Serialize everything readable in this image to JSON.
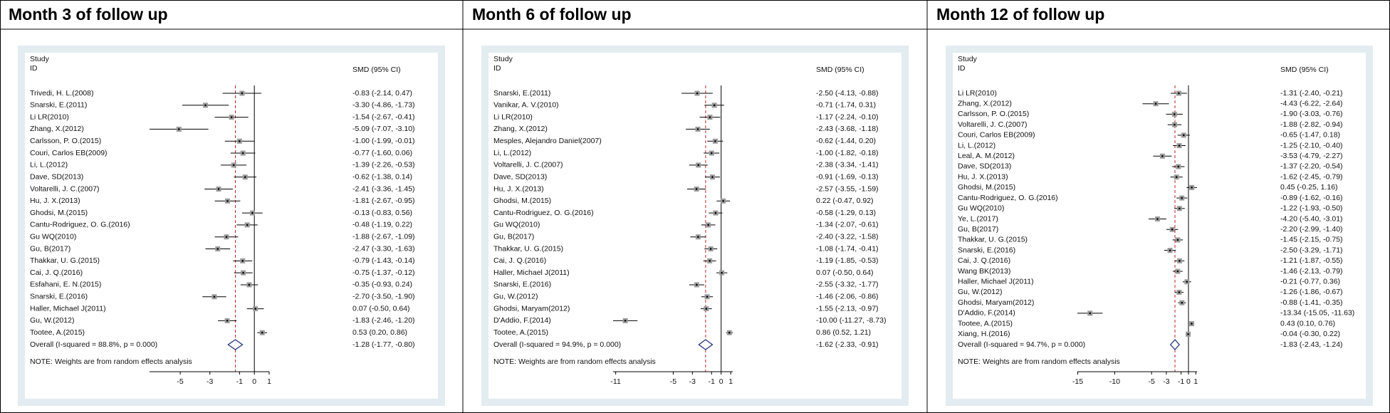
{
  "chart_data": [
    {
      "type": "forest",
      "title": "Month 3 of follow up",
      "study_header": "Study",
      "id_header": "ID",
      "effect_header": "SMD (95% CI)",
      "studies": [
        "Trivedi, H. L.(2008)",
        "Snarski, E.(2011)",
        "Li LR(2010)",
        "Zhang, X.(2012)",
        "Carlsson, P. O.(2015)",
        "Couri, Carlos EB(2009)",
        "Li, L.(2012)",
        "Dave, SD(2013)",
        "Voltarelli, J. C.(2007)",
        "Hu, J. X.(2013)",
        "Ghodsi, M.(2015)",
        "Cantu-Rodriguez, O. G.(2016)",
        "Gu WQ(2010)",
        "Gu, B(2017)",
        "Thakkar, U. G.(2015)",
        "Cai, J. Q.(2016)",
        "Esfahani, E. N.(2015)",
        "Snarski, E.(2016)",
        "Haller, Michael J(2011)",
        "Gu, W.(2012)",
        "Tootee, A.(2015)"
      ],
      "values": [
        -0.83,
        -3.3,
        -1.54,
        -5.09,
        -1.0,
        -0.77,
        -1.39,
        -0.62,
        -2.41,
        -1.81,
        -0.13,
        -0.48,
        -1.88,
        -2.47,
        -0.79,
        -0.75,
        -0.35,
        -2.7,
        0.07,
        -1.83,
        0.53
      ],
      "lower": [
        -2.14,
        -4.86,
        -2.67,
        -7.07,
        -1.99,
        -1.6,
        -2.26,
        -1.38,
        -3.36,
        -2.67,
        -0.83,
        -1.19,
        -2.67,
        -3.3,
        -1.43,
        -1.37,
        -0.93,
        -3.5,
        -0.5,
        -2.46,
        0.2
      ],
      "upper": [
        0.47,
        -1.73,
        -0.41,
        -3.1,
        -0.01,
        0.06,
        -0.53,
        0.14,
        -1.45,
        -0.95,
        0.56,
        0.22,
        -1.09,
        -1.63,
        -0.14,
        -0.12,
        0.24,
        -1.9,
        0.64,
        -1.2,
        0.86
      ],
      "value_labels": [
        "-0.83 (-2.14, 0.47)",
        "-3.30 (-4.86, -1.73)",
        "-1.54 (-2.67, -0.41)",
        "-5.09 (-7.07, -3.10)",
        "-1.00 (-1.99, -0.01)",
        "-0.77 (-1.60, 0.06)",
        "-1.39 (-2.26, -0.53)",
        "-0.62 (-1.38, 0.14)",
        "-2.41 (-3.36, -1.45)",
        "-1.81 (-2.67, -0.95)",
        "-0.13 (-0.83, 0.56)",
        "-0.48 (-1.19, 0.22)",
        "-1.88 (-2.67, -1.09)",
        "-2.47 (-3.30, -1.63)",
        "-0.79 (-1.43, -0.14)",
        "-0.75 (-1.37, -0.12)",
        "-0.35 (-0.93, 0.24)",
        "-2.70 (-3.50, -1.90)",
        "0.07 (-0.50, 0.64)",
        "-1.83 (-2.46, -1.20)",
        "0.53 (0.20, 0.86)"
      ],
      "overall_label": "Overall  (I-squared = 88.8%, p = 0.000)",
      "overall_value": -1.28,
      "overall_lower": -1.77,
      "overall_upper": -0.8,
      "overall_value_label": "-1.28 (-1.77, -0.80)",
      "note": "NOTE: Weights are from random effects analysis",
      "xlim": [
        -7.07,
        1
      ],
      "xticks": [
        -5,
        -3,
        -1,
        0,
        1
      ]
    },
    {
      "type": "forest",
      "title": "Month 6 of follow up",
      "study_header": "Study",
      "id_header": "ID",
      "effect_header": "SMD (95% CI)",
      "studies": [
        "Snarski, E.(2011)",
        "Vanikar, A. V.(2010)",
        "Li LR(2010)",
        "Zhang, X.(2012)",
        "Mesples, Alejandro Daniel(2007)",
        "Li, L.(2012)",
        "Voltarelli, J. C.(2007)",
        "Dave, SD(2013)",
        "Hu, J. X.(2013)",
        "Ghodsi, M.(2015)",
        "Cantu-Rodriguez, O. G.(2016)",
        "Gu WQ(2010)",
        "Gu, B(2017)",
        "Thakkar, U. G.(2015)",
        "Cai, J. Q.(2016)",
        "Haller, Michael J(2011)",
        "Snarski, E.(2016)",
        "Gu, W.(2012)",
        "Ghodsi, Maryam(2012)",
        "D'Addio, F.(2014)",
        "Tootee, A.(2015)"
      ],
      "values": [
        -2.5,
        -0.71,
        -1.17,
        -2.43,
        -0.62,
        -1.0,
        -2.38,
        -0.91,
        -2.57,
        0.22,
        -0.58,
        -1.34,
        -2.4,
        -1.08,
        -1.19,
        0.07,
        -2.55,
        -1.46,
        -1.55,
        -10.0,
        0.86
      ],
      "lower": [
        -4.13,
        -1.74,
        -2.24,
        -3.68,
        -1.44,
        -1.82,
        -3.34,
        -1.69,
        -3.55,
        -0.47,
        -1.29,
        -2.07,
        -3.22,
        -1.74,
        -1.85,
        -0.5,
        -3.32,
        -2.06,
        -2.13,
        -11.27,
        0.52
      ],
      "upper": [
        -0.88,
        0.31,
        -0.1,
        -1.18,
        0.2,
        -0.18,
        -1.41,
        -0.13,
        -1.59,
        0.92,
        0.13,
        -0.61,
        -1.58,
        -0.41,
        -0.53,
        0.64,
        -1.77,
        -0.86,
        -0.97,
        -8.73,
        1.21
      ],
      "value_labels": [
        "-2.50 (-4.13, -0.88)",
        "-0.71 (-1.74, 0.31)",
        "-1.17 (-2.24, -0.10)",
        "-2.43 (-3.68, -1.18)",
        "-0.62 (-1.44, 0.20)",
        "-1.00 (-1.82, -0.18)",
        "-2.38 (-3.34, -1.41)",
        "-0.91 (-1.69, -0.13)",
        "-2.57 (-3.55, -1.59)",
        "0.22 (-0.47, 0.92)",
        "-0.58 (-1.29, 0.13)",
        "-1.34 (-2.07, -0.61)",
        "-2.40 (-3.22, -1.58)",
        "-1.08 (-1.74, -0.41)",
        "-1.19 (-1.85, -0.53)",
        "0.07 (-0.50, 0.64)",
        "-2.55 (-3.32, -1.77)",
        "-1.46 (-2.06, -0.86)",
        "-1.55 (-2.13, -0.97)",
        "-10.00 (-11.27, -8.73)",
        "0.86 (0.52, 1.21)"
      ],
      "overall_label": "Overall  (I-squared = 94.9%, p = 0.000)",
      "overall_value": -1.62,
      "overall_lower": -2.33,
      "overall_upper": -0.91,
      "overall_value_label": "-1.62 (-2.33, -0.91)",
      "note": "NOTE: Weights are from random effects analysis",
      "xlim": [
        -11.27,
        1.21
      ],
      "xticks": [
        -11,
        -5,
        -3,
        -1,
        0,
        1
      ]
    },
    {
      "type": "forest",
      "title": "Month 12 of follow up",
      "study_header": "Study",
      "id_header": "ID",
      "effect_header": "SMD (95% CI)",
      "studies": [
        "Li LR(2010)",
        "Zhang, X.(2012)",
        "Carlsson, P. O.(2015)",
        "Voltarelli, J. C.(2007)",
        "Couri, Carlos EB(2009)",
        "Li, L.(2012)",
        "Leal, A. M.(2012)",
        "Dave, SD(2013)",
        "Hu, J. X.(2013)",
        "Ghodsi, M.(2015)",
        "Cantu-Rodriguez, O. G.(2016)",
        "Gu WQ(2010)",
        "Ye, L.(2017)",
        "Gu, B(2017)",
        "Thakkar, U. G.(2015)",
        "Snarski, E.(2016)",
        "Cai, J. Q.(2016)",
        "Wang BK(2013)",
        "Haller, Michael J(2011)",
        "Gu, W.(2012)",
        "Ghodsi, Maryam(2012)",
        "D'Addio, F.(2014)",
        "Tootee, A.(2015)",
        "Xiang, H.(2016)"
      ],
      "values": [
        -1.31,
        -4.43,
        -1.9,
        -1.88,
        -0.65,
        -1.25,
        -3.53,
        -1.37,
        -1.62,
        0.45,
        -0.89,
        -1.22,
        -4.2,
        -2.2,
        -1.45,
        -2.5,
        -1.21,
        -1.46,
        -0.21,
        -1.26,
        -0.88,
        -13.34,
        0.43,
        -0.04
      ],
      "lower": [
        -2.4,
        -6.22,
        -3.03,
        -2.82,
        -1.47,
        -2.1,
        -4.79,
        -2.2,
        -2.45,
        -0.25,
        -1.62,
        -1.93,
        -5.4,
        -2.99,
        -2.15,
        -3.29,
        -1.87,
        -2.13,
        -0.77,
        -1.86,
        -1.41,
        -15.05,
        0.1,
        -0.3
      ],
      "upper": [
        -0.21,
        -2.64,
        -0.76,
        -0.94,
        0.18,
        -0.4,
        -2.27,
        -0.54,
        -0.79,
        1.16,
        -0.16,
        -0.5,
        -3.01,
        -1.4,
        -0.75,
        -1.71,
        -0.55,
        -0.79,
        0.36,
        -0.67,
        -0.35,
        -11.63,
        0.76,
        0.22
      ],
      "value_labels": [
        "-1.31 (-2.40, -0.21)",
        "-4.43 (-6.22, -2.64)",
        "-1.90 (-3.03, -0.76)",
        "-1.88 (-2.82, -0.94)",
        "-0.65 (-1.47, 0.18)",
        "-1.25 (-2.10, -0.40)",
        "-3.53 (-4.79, -2.27)",
        "-1.37 (-2.20, -0.54)",
        "-1.62 (-2.45, -0.79)",
        "0.45 (-0.25, 1.16)",
        "-0.89 (-1.62, -0.16)",
        "-1.22 (-1.93, -0.50)",
        "-4.20 (-5.40, -3.01)",
        "-2.20 (-2.99, -1.40)",
        "-1.45 (-2.15, -0.75)",
        "-2.50 (-3.29, -1.71)",
        "-1.21 (-1.87, -0.55)",
        "-1.46 (-2.13, -0.79)",
        "-0.21 (-0.77, 0.36)",
        "-1.26 (-1.86, -0.67)",
        "-0.88 (-1.41, -0.35)",
        "-13.34 (-15.05, -11.63)",
        "0.43 (0.10, 0.76)",
        "-0.04 (-0.30, 0.22)"
      ],
      "overall_label": "Overall  (I-squared = 94.7%, p = 0.000)",
      "overall_value": -1.83,
      "overall_lower": -2.43,
      "overall_upper": -1.24,
      "overall_value_label": "-1.83 (-2.43, -1.24)",
      "note": "NOTE: Weights are from random effects analysis",
      "xlim": [
        -15.05,
        1.16
      ],
      "xticks": [
        -15,
        -10,
        -5,
        -3,
        -1,
        0,
        1
      ]
    }
  ]
}
